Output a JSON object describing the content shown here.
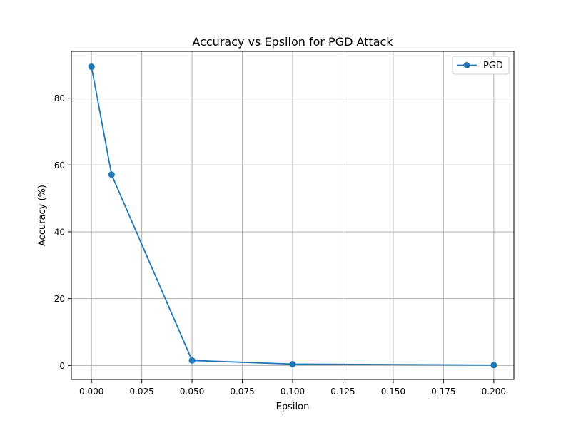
{
  "chart_data": {
    "type": "line",
    "title": "Accuracy vs Epsilon for PGD Attack",
    "xlabel": "Epsilon",
    "ylabel": "Accuracy (%)",
    "xlim": [
      -0.01,
      0.21
    ],
    "ylim": [
      -4.2,
      94
    ],
    "xticks": [
      0.0,
      0.025,
      0.05,
      0.075,
      0.1,
      0.125,
      0.15,
      0.175,
      0.2
    ],
    "xtick_labels": [
      "0.000",
      "0.025",
      "0.050",
      "0.075",
      "0.100",
      "0.125",
      "0.150",
      "0.175",
      "0.200"
    ],
    "yticks": [
      0,
      20,
      40,
      60,
      80
    ],
    "ytick_labels": [
      "0",
      "20",
      "40",
      "60",
      "80"
    ],
    "grid": true,
    "legend_position": "top-right",
    "series": [
      {
        "name": "PGD",
        "color": "#1f77b4",
        "marker": "circle",
        "x": [
          0.0,
          0.01,
          0.05,
          0.1,
          0.2
        ],
        "y": [
          89.4,
          57.1,
          1.5,
          0.4,
          0.1
        ]
      }
    ]
  }
}
